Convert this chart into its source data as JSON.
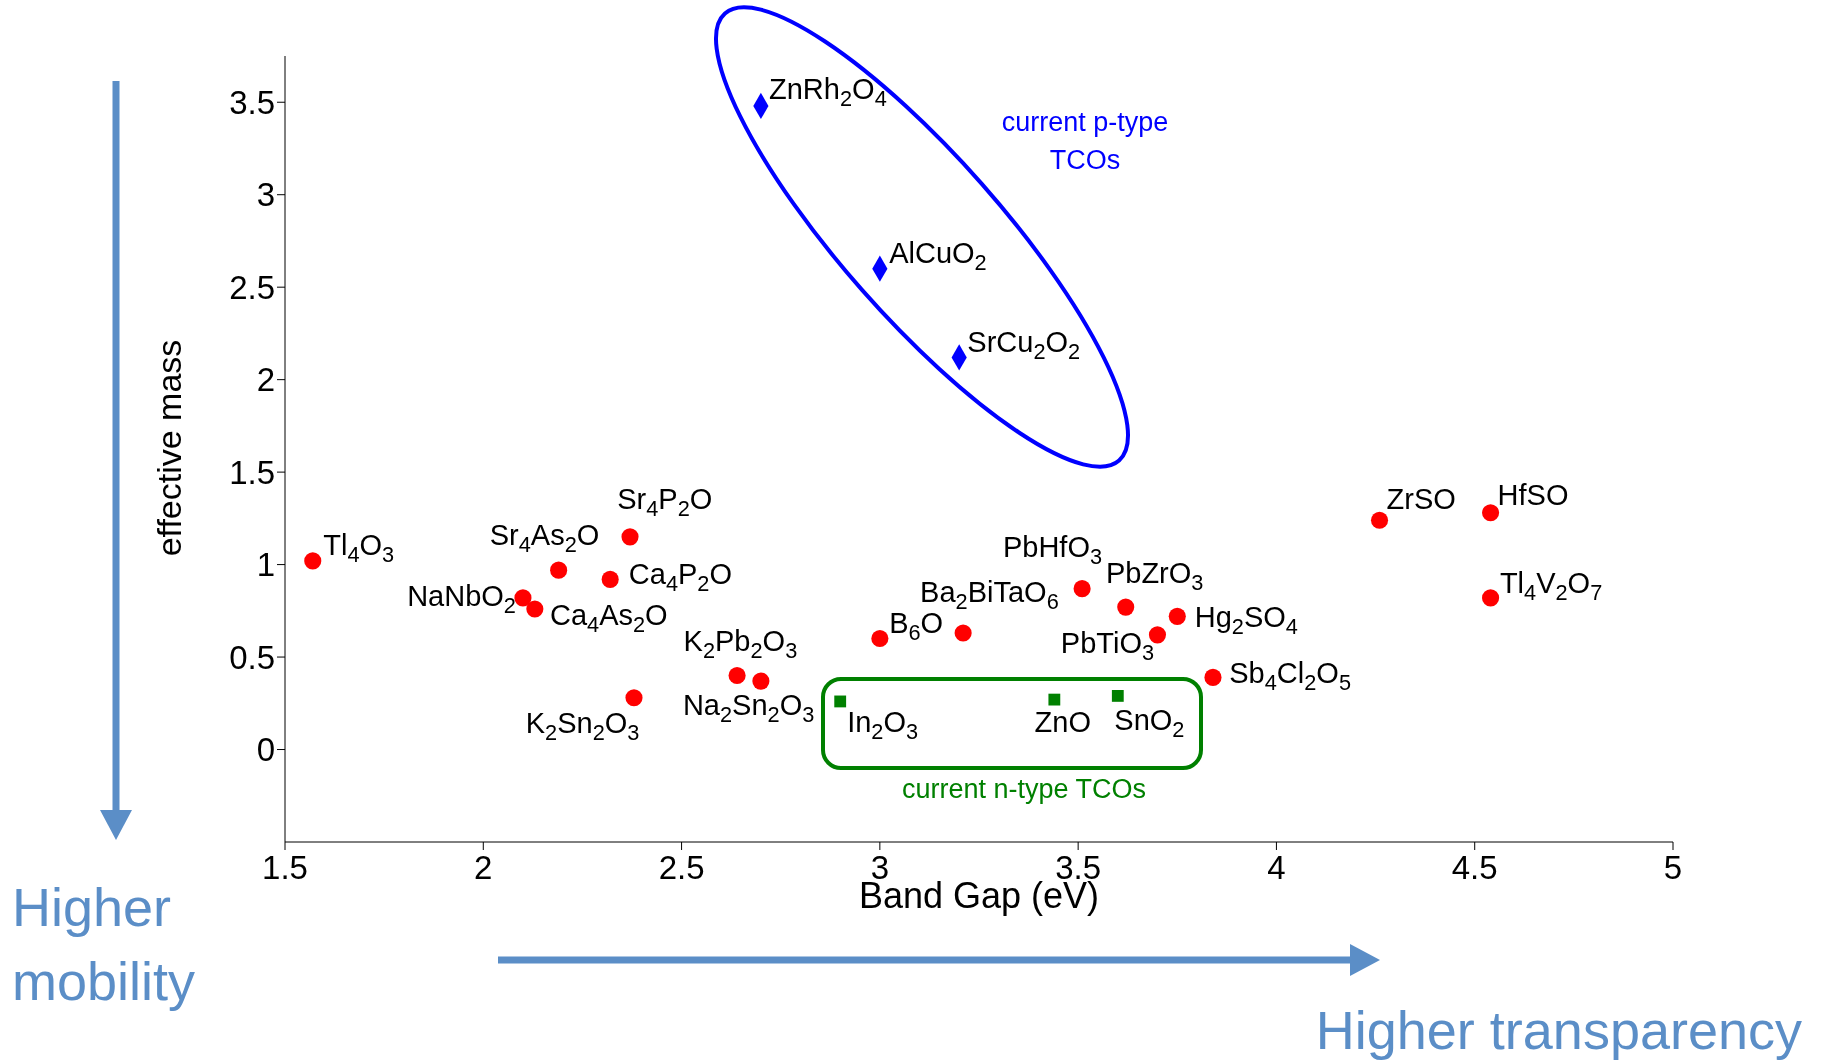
{
  "chart_data": {
    "type": "scatter",
    "xlabel": "Band Gap (eV)",
    "ylabel": "effective mass",
    "xlim": [
      1.5,
      5
    ],
    "xticks": [
      1.5,
      2,
      2.5,
      3,
      3.5,
      4,
      4.5,
      5
    ],
    "ylim": [
      -0.5,
      3.75
    ],
    "yticks": [
      0,
      0.5,
      1,
      1.5,
      2,
      2.5,
      3,
      3.5
    ],
    "series": [
      {
        "color": "#ff0000",
        "marker": "circle",
        "x": [
          1.57,
          2.1,
          2.13,
          2.19,
          2.32,
          2.37,
          2.38,
          2.64,
          2.7,
          3.0,
          3.21,
          3.51,
          3.62,
          3.7,
          3.75,
          3.84,
          4.26,
          4.54,
          4.54
        ],
        "values": [
          1.02,
          0.82,
          0.76,
          0.97,
          0.92,
          1.15,
          0.28,
          0.4,
          0.37,
          0.6,
          0.63,
          0.87,
          0.77,
          0.62,
          0.72,
          0.39,
          1.24,
          1.28,
          0.82
        ]
      },
      {
        "color": "#0000ff",
        "marker": "diamond",
        "x": [
          2.7,
          3.0,
          3.2
        ],
        "values": [
          3.48,
          2.6,
          2.12
        ]
      },
      {
        "color": "#008000",
        "marker": "square",
        "x": [
          2.9,
          3.44,
          3.6
        ],
        "values": [
          0.26,
          0.27,
          0.29
        ]
      }
    ],
    "annotations": [
      {
        "text": "Tl$_{4}$O$_{3}$",
        "x": 1.57,
        "y": 1.02
      },
      {
        "text": "NaNbO$_{2}$",
        "x": 2.1,
        "y": 0.82
      },
      {
        "text": "Ca$_{4}$As$_{2}$O",
        "x": 2.13,
        "y": 0.76
      },
      {
        "text": "Sr$_{4}$As$_{2}$O",
        "x": 2.19,
        "y": 0.97
      },
      {
        "text": "Ca$_{4}$P$_{2}$O",
        "x": 2.32,
        "y": 0.92
      },
      {
        "text": "Sr$_{4}$P$_{2}$O",
        "x": 2.37,
        "y": 1.15
      },
      {
        "text": "K$_{2}$Sn$_{2}$O$_{3}$",
        "x": 2.38,
        "y": 0.28
      },
      {
        "text": "K$_{2}$Pb$_{2}$O$_{3}$",
        "x": 2.64,
        "y": 0.4
      },
      {
        "text": "Na$_{2}$Sn$_{2}$O$_{3}$",
        "x": 2.7,
        "y": 0.37
      },
      {
        "text": "B$_{6}$O",
        "x": 3.0,
        "y": 0.6
      },
      {
        "text": "Ba$_{2}$BiTaO$_{6}$",
        "x": 3.21,
        "y": 0.63
      },
      {
        "text": "PbHfO$_{3}$",
        "x": 3.51,
        "y": 0.87
      },
      {
        "text": "PbZrO$_{3}$",
        "x": 3.62,
        "y": 0.77
      },
      {
        "text": "PbTiO$_{3}$",
        "x": 3.7,
        "y": 0.62
      },
      {
        "text": "Hg$_{2}$SO$_{4}$",
        "x": 3.75,
        "y": 0.72
      },
      {
        "text": "Sb$_{4}$Cl$_{2}$O$_{5}$",
        "x": 3.84,
        "y": 0.39
      },
      {
        "text": "ZrSO",
        "x": 4.26,
        "y": 1.24
      },
      {
        "text": "HfSO",
        "x": 4.54,
        "y": 1.28
      },
      {
        "text": "Tl$_{4}$V$_{2}$O$_{7}$",
        "x": 4.54,
        "y": 0.82
      },
      {
        "text": "ZnRh$_{2}$O$_{4}$",
        "x": 2.7,
        "y": 3.48
      },
      {
        "text": "AlCuO$_{2}$",
        "x": 3.0,
        "y": 2.6
      },
      {
        "text": "SrCu$_{2}$O$_{2}$",
        "x": 3.2,
        "y": 2.12
      },
      {
        "text": "In$_{2}$O$_{3}$",
        "x": 2.9,
        "y": 0.26
      },
      {
        "text": "ZnO",
        "x": 3.44,
        "y": 0.27
      },
      {
        "text": "SnO$_{2}$",
        "x": 3.6,
        "y": 0.29
      },
      "current p-type\nTCOs",
      "current n-type TCOs",
      "Higher\nmobility",
      "Higher transparency"
    ]
  }
}
